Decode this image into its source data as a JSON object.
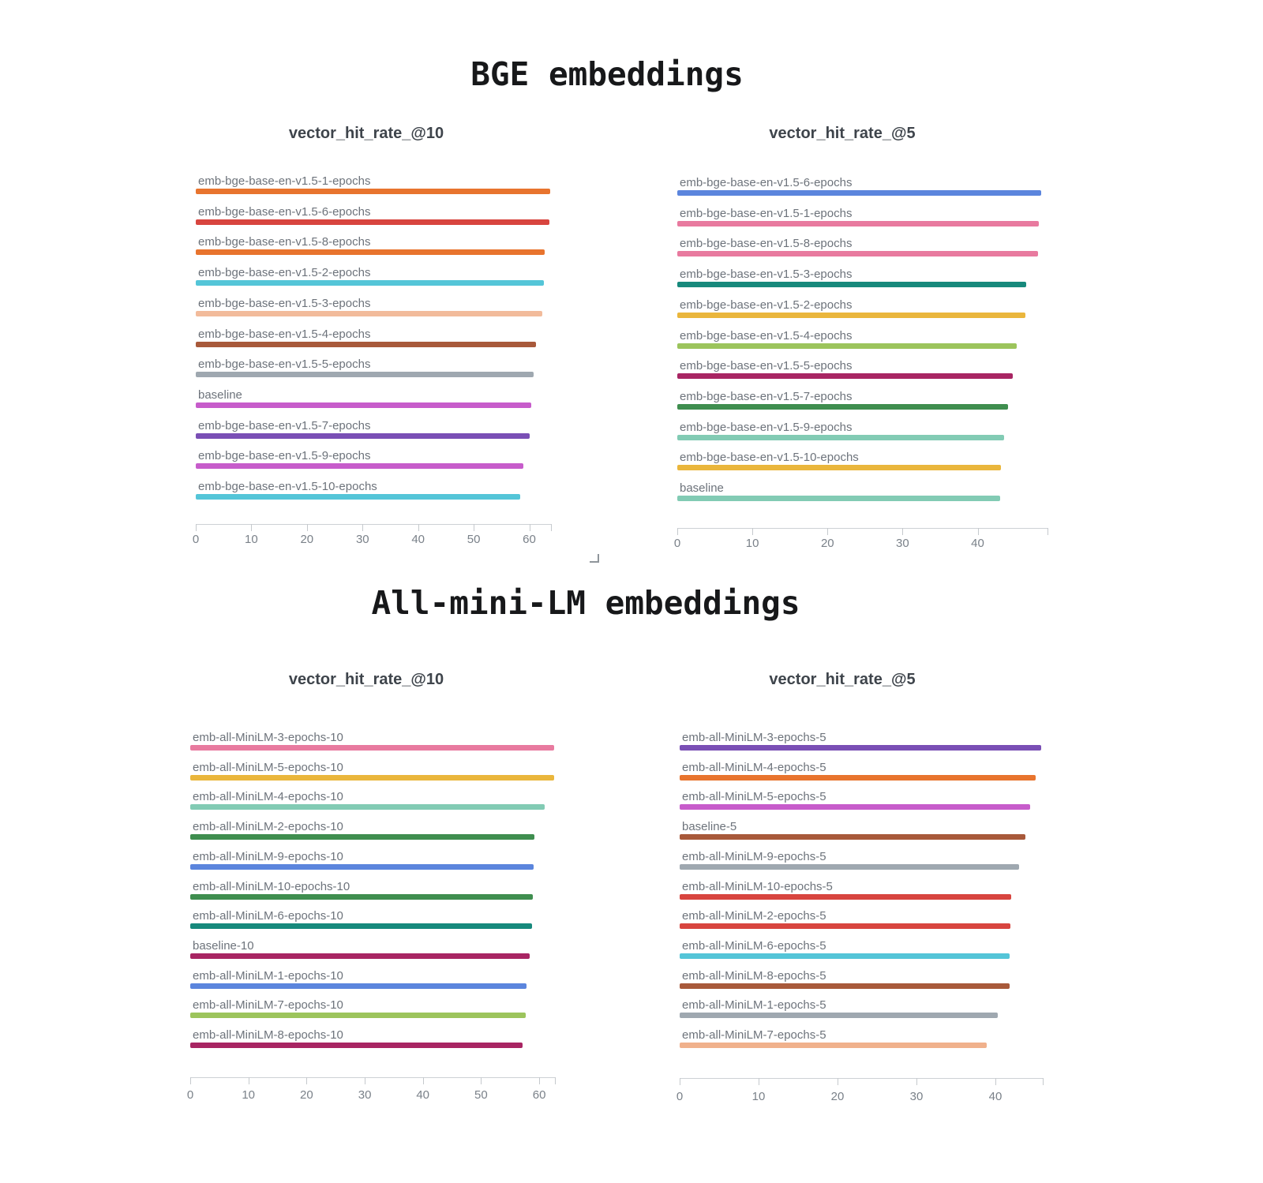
{
  "page": {
    "background": "#ffffff"
  },
  "sections": [
    {
      "title": "BGE embeddings"
    },
    {
      "title": "All-mini-LM embeddings"
    }
  ],
  "chart_data": [
    {
      "type": "bar",
      "orientation": "horizontal",
      "section": "BGE embeddings",
      "title": "vector_hit_rate_@10",
      "categories": [
        "emb-bge-base-en-v1.5-1-epochs",
        "emb-bge-base-en-v1.5-6-epochs",
        "emb-bge-base-en-v1.5-8-epochs",
        "emb-bge-base-en-v1.5-2-epochs",
        "emb-bge-base-en-v1.5-3-epochs",
        "emb-bge-base-en-v1.5-4-epochs",
        "emb-bge-base-en-v1.5-5-epochs",
        "baseline",
        "emb-bge-base-en-v1.5-7-epochs",
        "emb-bge-base-en-v1.5-9-epochs",
        "emb-bge-base-en-v1.5-10-epochs"
      ],
      "values": [
        63.8,
        63.6,
        62.8,
        62.6,
        62.3,
        61.2,
        60.8,
        60.4,
        60.0,
        58.9,
        58.3
      ],
      "colors": [
        "#e8742e",
        "#d8453f",
        "#e8742e",
        "#54c5d8",
        "#f2bb9b",
        "#a8593a",
        "#9fa8b0",
        "#c75ccb",
        "#7a4fb5",
        "#c75ccb",
        "#54c5d8"
      ],
      "xlim": [
        0,
        63.9
      ],
      "xticks": [
        0,
        10,
        20,
        30,
        40,
        50,
        60
      ],
      "grid": false,
      "legend": "none"
    },
    {
      "type": "bar",
      "orientation": "horizontal",
      "section": "BGE embeddings",
      "title": "vector_hit_rate_@5",
      "categories": [
        "emb-bge-base-en-v1.5-6-epochs",
        "emb-bge-base-en-v1.5-1-epochs",
        "emb-bge-base-en-v1.5-8-epochs",
        "emb-bge-base-en-v1.5-3-epochs",
        "emb-bge-base-en-v1.5-2-epochs",
        "emb-bge-base-en-v1.5-4-epochs",
        "emb-bge-base-en-v1.5-5-epochs",
        "emb-bge-base-en-v1.5-7-epochs",
        "emb-bge-base-en-v1.5-9-epochs",
        "emb-bge-base-en-v1.5-10-epochs",
        "baseline"
      ],
      "values": [
        48.5,
        48.1,
        48.0,
        46.5,
        46.4,
        45.2,
        44.7,
        44.0,
        43.5,
        43.1,
        43.0
      ],
      "colors": [
        "#5b85dd",
        "#e87a9f",
        "#e87a9f",
        "#17897c",
        "#eab63c",
        "#9cc45c",
        "#a82563",
        "#3f8e4f",
        "#82cbb4",
        "#eab63c",
        "#82cbb4"
      ],
      "xlim": [
        0,
        49.3
      ],
      "xticks": [
        0,
        10,
        20,
        30,
        40
      ],
      "grid": false,
      "legend": "none"
    },
    {
      "type": "bar",
      "orientation": "horizontal",
      "section": "All-mini-LM embeddings",
      "title": "vector_hit_rate_@10",
      "categories": [
        "emb-all-MiniLM-3-epochs-10",
        "emb-all-MiniLM-5-epochs-10",
        "emb-all-MiniLM-4-epochs-10",
        "emb-all-MiniLM-2-epochs-10",
        "emb-all-MiniLM-9-epochs-10",
        "emb-all-MiniLM-10-epochs-10",
        "emb-all-MiniLM-6-epochs-10",
        "baseline-10",
        "emb-all-MiniLM-1-epochs-10",
        "emb-all-MiniLM-7-epochs-10",
        "emb-all-MiniLM-8-epochs-10"
      ],
      "values": [
        62.6,
        62.5,
        60.9,
        59.2,
        59.0,
        58.9,
        58.8,
        58.4,
        57.8,
        57.7,
        57.1
      ],
      "colors": [
        "#e87a9f",
        "#eab63c",
        "#82cbb4",
        "#3f8e4f",
        "#5b85dd",
        "#3f8e4f",
        "#17897c",
        "#a82563",
        "#5b85dd",
        "#9cc45c",
        "#a82563"
      ],
      "xlim": [
        0,
        62.7
      ],
      "xticks": [
        0,
        10,
        20,
        30,
        40,
        50,
        60
      ],
      "grid": false,
      "legend": "none"
    },
    {
      "type": "bar",
      "orientation": "horizontal",
      "section": "All-mini-LM embeddings",
      "title": "vector_hit_rate_@5",
      "categories": [
        "emb-all-MiniLM-3-epochs-5",
        "emb-all-MiniLM-4-epochs-5",
        "emb-all-MiniLM-5-epochs-5",
        "baseline-5",
        "emb-all-MiniLM-9-epochs-5",
        "emb-all-MiniLM-10-epochs-5",
        "emb-all-MiniLM-2-epochs-5",
        "emb-all-MiniLM-6-epochs-5",
        "emb-all-MiniLM-8-epochs-5",
        "emb-all-MiniLM-1-epochs-5",
        "emb-all-MiniLM-7-epochs-5"
      ],
      "values": [
        45.8,
        45.1,
        44.4,
        43.8,
        43.0,
        42.0,
        41.9,
        41.8,
        41.8,
        40.3,
        38.9
      ],
      "colors": [
        "#7a4fb5",
        "#e8742e",
        "#c75ccb",
        "#a8593a",
        "#9fa8b0",
        "#d8453f",
        "#d8453f",
        "#54c5d8",
        "#a8593a",
        "#9fa8b0",
        "#f0b18c"
      ],
      "xlim": [
        0,
        46.0
      ],
      "xticks": [
        0,
        10,
        20,
        30,
        40
      ],
      "grid": false,
      "legend": "none"
    }
  ],
  "icons": {
    "resize_handle": "corner-bracket"
  }
}
